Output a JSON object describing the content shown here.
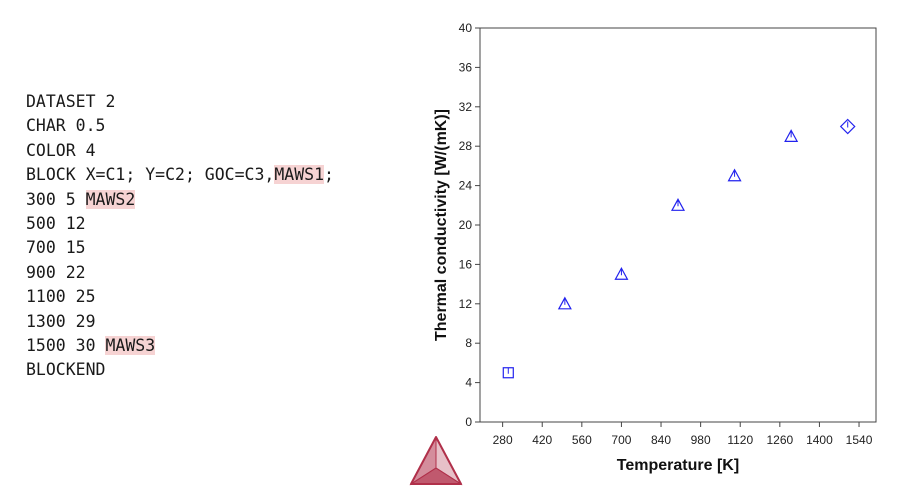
{
  "code": {
    "lines": [
      {
        "text": "DATASET 2"
      },
      {
        "text": "CHAR 0.5"
      },
      {
        "text": "COLOR 4"
      },
      {
        "text": "BLOCK X=C1; Y=C2; GOC=C3,",
        "highlight": "MAWS1",
        "suffix": ";"
      },
      {
        "text": "300 5 ",
        "highlight": "MAWS2"
      },
      {
        "text": "500 12"
      },
      {
        "text": "700 15"
      },
      {
        "text": "900 22"
      },
      {
        "text": "1100 25"
      },
      {
        "text": "1300 29"
      },
      {
        "text": "1500 30 ",
        "highlight": "MAWS3"
      },
      {
        "text": "BLOCKEND"
      }
    ],
    "highlight_color": "#f6d3d3"
  },
  "chart_data": {
    "type": "scatter",
    "xlabel": "Temperature [K]",
    "ylabel": "Thermal conductivity [W/(mK)]",
    "xlim": [
      200,
      1600
    ],
    "ylim": [
      0,
      40
    ],
    "xticks": [
      280,
      420,
      560,
      700,
      840,
      980,
      1120,
      1260,
      1400,
      1540
    ],
    "yticks": [
      0,
      4,
      8,
      12,
      16,
      20,
      24,
      28,
      32,
      36,
      40
    ],
    "grid": false,
    "marker_color": "#2222ee",
    "points": [
      {
        "x": 300,
        "y": 5,
        "marker": "square"
      },
      {
        "x": 500,
        "y": 12,
        "marker": "triangle"
      },
      {
        "x": 700,
        "y": 15,
        "marker": "triangle"
      },
      {
        "x": 900,
        "y": 22,
        "marker": "triangle"
      },
      {
        "x": 1100,
        "y": 25,
        "marker": "triangle"
      },
      {
        "x": 1300,
        "y": 29,
        "marker": "triangle"
      },
      {
        "x": 1500,
        "y": 30,
        "marker": "diamond"
      }
    ]
  },
  "logo": {
    "name": "thermo-calc-logo-icon",
    "color": "#b0304a"
  }
}
